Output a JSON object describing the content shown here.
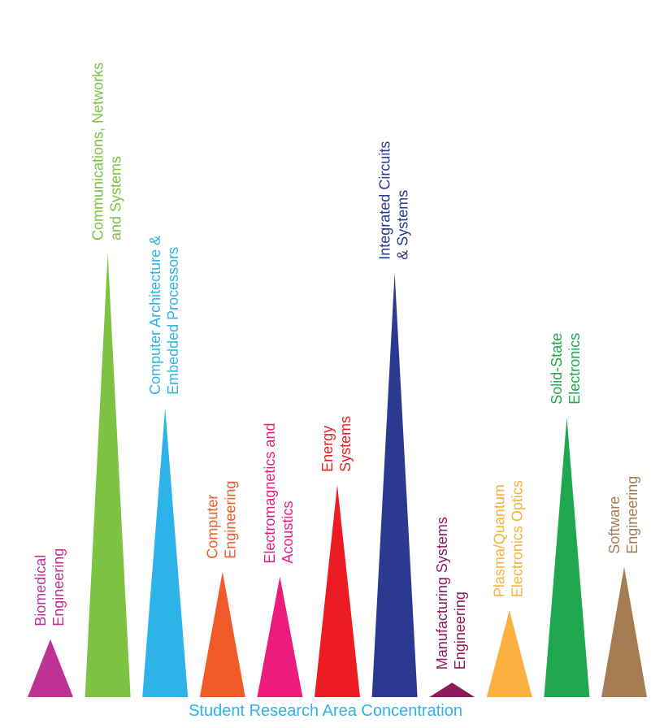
{
  "chart_data": {
    "type": "bar",
    "title": "Student Research Area Concentration",
    "categories": [
      {
        "lines": [
          "Biomedical",
          "Engineering"
        ],
        "color": "#bf3295",
        "value": 6
      },
      {
        "lines": [
          "Communications, Networks",
          "and Systems"
        ],
        "color": "#7dc242",
        "value": 46
      },
      {
        "lines": [
          "Computer Architecture &",
          "Embedded Processors"
        ],
        "color": "#2db3e8",
        "value": 30
      },
      {
        "lines": [
          "Computer",
          "Engineering"
        ],
        "color": "#f15a29",
        "value": 13
      },
      {
        "lines": [
          "Electromagnetics and",
          "Acoustics"
        ],
        "color": "#ec1c7c",
        "value": 12.5
      },
      {
        "lines": [
          "Energy",
          "Systems"
        ],
        "color": "#ed1c24",
        "value": 22
      },
      {
        "lines": [
          "Integrated Circuits",
          "& Systems"
        ],
        "color": "#2b3990",
        "value": 44
      },
      {
        "lines": [
          "Manufacturing Systems",
          "Engineering"
        ],
        "color": "#8c1b5c",
        "value": 1.5
      },
      {
        "lines": [
          "Plasma/Quantum",
          "Electronics Optics"
        ],
        "color": "#fbb040",
        "value": 9
      },
      {
        "lines": [
          "Solid-State",
          "Electronics"
        ],
        "color": "#1fa84f",
        "value": 29
      },
      {
        "lines": [
          "Software",
          "Engineering"
        ],
        "color": "#a67c52",
        "value": 13.5
      }
    ],
    "ylim": [
      0,
      46
    ]
  }
}
